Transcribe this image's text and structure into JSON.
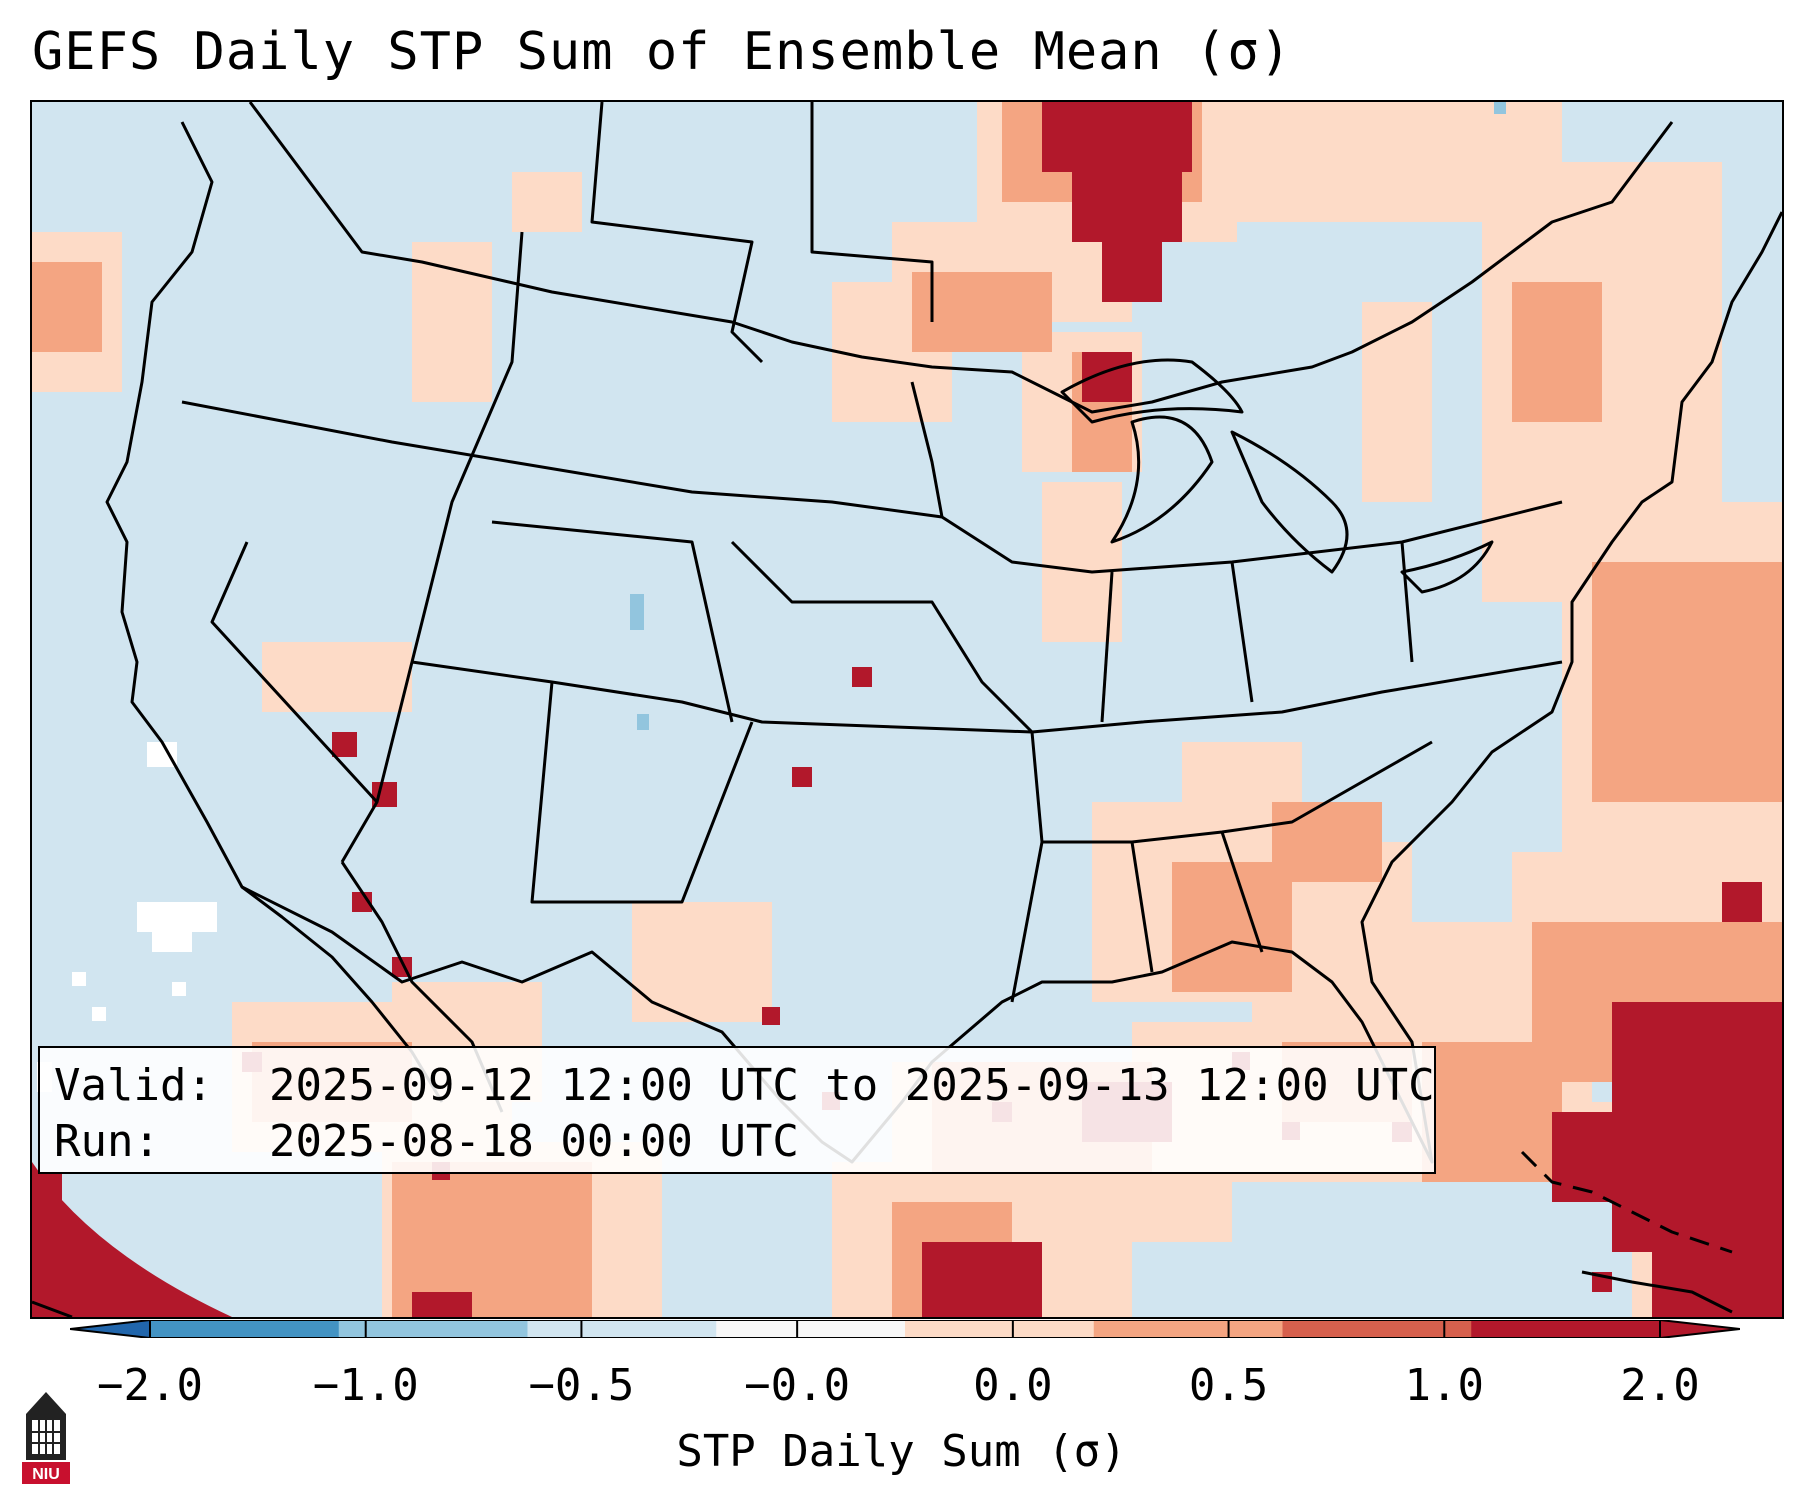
{
  "title": "GEFS Daily STP Sum of Ensemble Mean (σ)",
  "map": {
    "region": "Continental United States",
    "background_color": "#d1e5f0",
    "border_color": "#000000"
  },
  "info_box": {
    "valid_label": "Valid:",
    "valid_value": "2025-09-12 12:00 UTC to 2025-09-13 12:00 UTC",
    "run_label": "Run:",
    "run_value": "2025-08-18 00:00 UTC"
  },
  "colorbar": {
    "label": "STP Daily Sum (σ)",
    "ticks": [
      "−2.0",
      "−1.0",
      "−0.5",
      "−0.0",
      "0.0",
      "0.5",
      "1.0",
      "2.0"
    ],
    "colors": [
      "#4393c3",
      "#92c5de",
      "#d1e5f0",
      "#f7f7f7",
      "#fddbc7",
      "#f4a582",
      "#d6604d",
      "#b2182b"
    ],
    "under_color": "#2166ac",
    "over_color": "#b2182b"
  },
  "logo": {
    "text": "NIU"
  }
}
